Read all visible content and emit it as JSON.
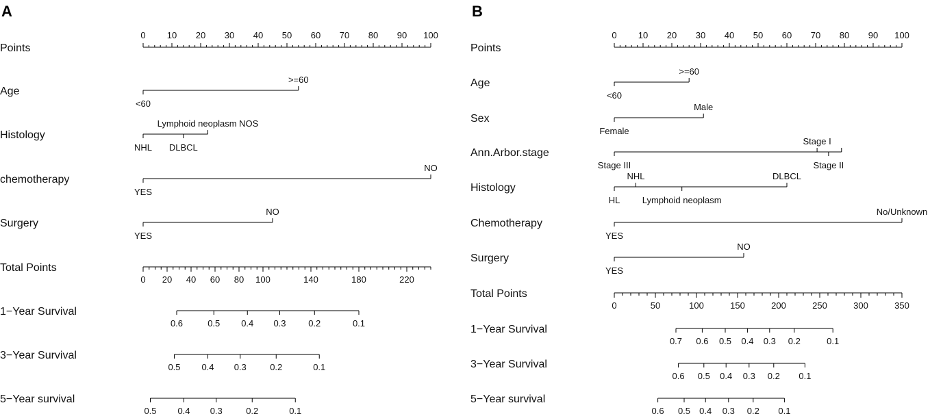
{
  "chart_data": [
    {
      "type": "nomogram",
      "panel": "A",
      "points_scale": {
        "label": "Points",
        "ticks": [
          0,
          10,
          20,
          30,
          40,
          50,
          60,
          70,
          80,
          90,
          100
        ]
      },
      "variables": [
        {
          "name": "Age",
          "levels": [
            {
              "label": "<60",
              "points": 0,
              "pos": "below"
            },
            {
              "label": ">=60",
              "points": 54,
              "pos": "above"
            }
          ]
        },
        {
          "name": "Histology",
          "levels": [
            {
              "label": "NHL",
              "points": 0,
              "pos": "below"
            },
            {
              "label": "DLBCL",
              "points": 14,
              "pos": "below"
            },
            {
              "label": "Lymphoid neoplasm NOS",
              "points": 22.5,
              "pos": "above"
            }
          ]
        },
        {
          "name": "chemotherapy",
          "levels": [
            {
              "label": "YES",
              "points": 0,
              "pos": "below"
            },
            {
              "label": "NO",
              "points": 100,
              "pos": "above"
            }
          ]
        },
        {
          "name": "Surgery",
          "levels": [
            {
              "label": "YES",
              "points": 0,
              "pos": "below"
            },
            {
              "label": "NO",
              "points": 45,
              "pos": "above"
            }
          ]
        }
      ],
      "total_points": {
        "label": "Total Points",
        "min": 0,
        "max": 240,
        "minor": 5,
        "ticks": [
          0,
          20,
          40,
          60,
          80,
          100,
          140,
          180,
          220
        ]
      },
      "survival": [
        {
          "label": "1−Year Survival",
          "ticks": [
            {
              "label": "0.6",
              "total": 28
            },
            {
              "label": "0.5",
              "total": 59
            },
            {
              "label": "0.4",
              "total": 87
            },
            {
              "label": "0.3",
              "total": 114
            },
            {
              "label": "0.2",
              "total": 143
            },
            {
              "label": "0.1",
              "total": 180
            }
          ]
        },
        {
          "label": "3−Year Survival",
          "ticks": [
            {
              "label": "0.5",
              "total": 26
            },
            {
              "label": "0.4",
              "total": 54
            },
            {
              "label": "0.3",
              "total": 81
            },
            {
              "label": "0.2",
              "total": 111
            },
            {
              "label": "0.1",
              "total": 147
            }
          ]
        },
        {
          "label": "5−Year survival",
          "ticks": [
            {
              "label": "0.5",
              "total": 6
            },
            {
              "label": "0.4",
              "total": 34
            },
            {
              "label": "0.3",
              "total": 61
            },
            {
              "label": "0.2",
              "total": 91
            },
            {
              "label": "0.1",
              "total": 127
            }
          ]
        }
      ]
    },
    {
      "type": "nomogram",
      "panel": "B",
      "points_scale": {
        "label": "Points",
        "ticks": [
          0,
          10,
          20,
          30,
          40,
          50,
          60,
          70,
          80,
          90,
          100
        ]
      },
      "variables": [
        {
          "name": "Age",
          "levels": [
            {
              "label": "<60",
              "points": 0,
              "pos": "below"
            },
            {
              "label": ">=60",
              "points": 26,
              "pos": "above"
            }
          ]
        },
        {
          "name": "Sex",
          "levels": [
            {
              "label": "Female",
              "points": 0,
              "pos": "below"
            },
            {
              "label": "Male",
              "points": 31,
              "pos": "above"
            }
          ]
        },
        {
          "name": "Ann.Arbor.stage",
          "levels": [
            {
              "label": "Stage III",
              "points": 0,
              "pos": "below"
            },
            {
              "label": "Stage I",
              "points": 70.5,
              "pos": "above"
            },
            {
              "label": "Stage II",
              "points": 74.5,
              "pos": "below"
            },
            {
              "label": "",
              "points": 79,
              "pos": "none"
            }
          ]
        },
        {
          "name": "Histology",
          "levels": [
            {
              "label": "HL",
              "points": 0,
              "pos": "below"
            },
            {
              "label": "NHL",
              "points": 7.5,
              "pos": "above"
            },
            {
              "label": "Lymphoid neoplasm",
              "points": 23.5,
              "pos": "below"
            },
            {
              "label": "DLBCL",
              "points": 60,
              "pos": "above"
            }
          ]
        },
        {
          "name": "Chemotherapy",
          "levels": [
            {
              "label": "YES",
              "points": 0,
              "pos": "below"
            },
            {
              "label": "No/Unknown",
              "points": 100,
              "pos": "above"
            }
          ]
        },
        {
          "name": "Surgery",
          "levels": [
            {
              "label": "YES",
              "points": 0,
              "pos": "below"
            },
            {
              "label": "NO",
              "points": 45,
              "pos": "above"
            }
          ]
        }
      ],
      "total_points": {
        "label": "Total Points",
        "min": 0,
        "max": 350,
        "minor": 10,
        "ticks": [
          0,
          50,
          100,
          150,
          200,
          250,
          300,
          350
        ]
      },
      "survival": [
        {
          "label": "1−Year Survival",
          "ticks": [
            {
              "label": "0.7",
              "total": 75
            },
            {
              "label": "0.6",
              "total": 107
            },
            {
              "label": "0.5",
              "total": 135
            },
            {
              "label": "0.4",
              "total": 162
            },
            {
              "label": "0.3",
              "total": 189
            },
            {
              "label": "0.2",
              "total": 219
            },
            {
              "label": "0.1",
              "total": 266
            }
          ]
        },
        {
          "label": "3−Year Survival",
          "ticks": [
            {
              "label": "0.6",
              "total": 78
            },
            {
              "label": "0.5",
              "total": 109
            },
            {
              "label": "0.4",
              "total": 136
            },
            {
              "label": "0.3",
              "total": 164
            },
            {
              "label": "0.2",
              "total": 194
            },
            {
              "label": "0.1",
              "total": 232
            }
          ]
        },
        {
          "label": "5−Year survival",
          "ticks": [
            {
              "label": "0.6",
              "total": 53
            },
            {
              "label": "0.5",
              "total": 85
            },
            {
              "label": "0.4",
              "total": 111
            },
            {
              "label": "0.3",
              "total": 139
            },
            {
              "label": "0.2",
              "total": 169
            },
            {
              "label": "0.1",
              "total": 207
            }
          ]
        }
      ]
    }
  ]
}
